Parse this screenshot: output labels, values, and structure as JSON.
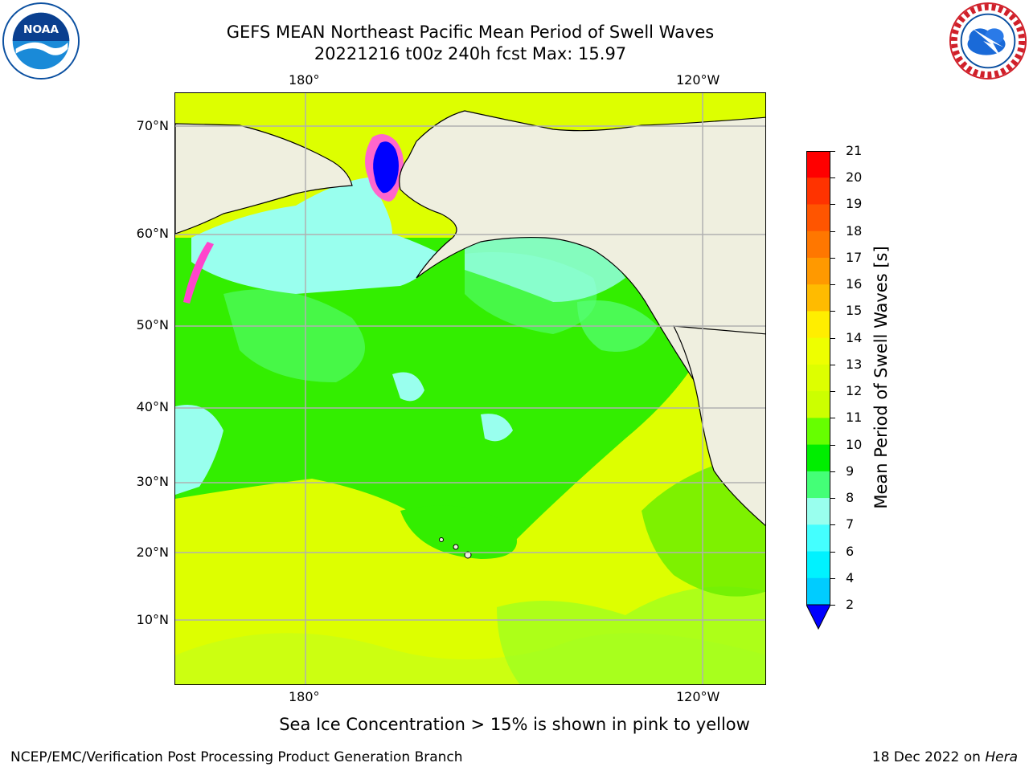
{
  "title_line1": "GEFS MEAN Northeast Pacific Mean Period of Swell Waves",
  "title_line2": "20221216 t00z 240h fcst   Max: 15.97",
  "longitude_labels_top": [
    "180°",
    "120°W"
  ],
  "longitude_labels_bottom": [
    "180°",
    "120°W"
  ],
  "latitude_labels": [
    "70°N",
    "60°N",
    "50°N",
    "40°N",
    "30°N",
    "20°N",
    "10°N"
  ],
  "colorbar": {
    "label": "Mean Period of Swell Waves [s]",
    "ticks": [
      "21",
      "20",
      "19",
      "18",
      "17",
      "16",
      "15",
      "14",
      "13",
      "12",
      "11",
      "10",
      "9",
      "8",
      "7",
      "6",
      "4",
      "2"
    ],
    "colors": [
      "#ff0000",
      "#ff3300",
      "#ff5500",
      "#ff7700",
      "#ff9900",
      "#ffbb00",
      "#ffee00",
      "#eeff00",
      "#ddff00",
      "#ccff00",
      "#66ff00",
      "#00ee00",
      "#44ff77",
      "#99ffee",
      "#44ffff",
      "#00f2ff",
      "#00ccff",
      "#0077ff",
      "#0000ff"
    ]
  },
  "ice_note": "Sea Ice Concentration > 15% is shown in pink to yellow",
  "credit": "NCEP/EMC/Verification Post Processing Product Generation Branch",
  "date_text": "18 Dec 2022 on ",
  "date_host": "Hera",
  "noaa_logo_text": "NOAA",
  "map_colors": {
    "land": "#efefdf",
    "grid": "#b0b0b0",
    "swell_yellow": "#ddff00",
    "swell_green": "#33ee00",
    "swell_cyan": "#99ffee",
    "ice_pink": "#ff66cc",
    "ice_blue": "#0000ff"
  }
}
